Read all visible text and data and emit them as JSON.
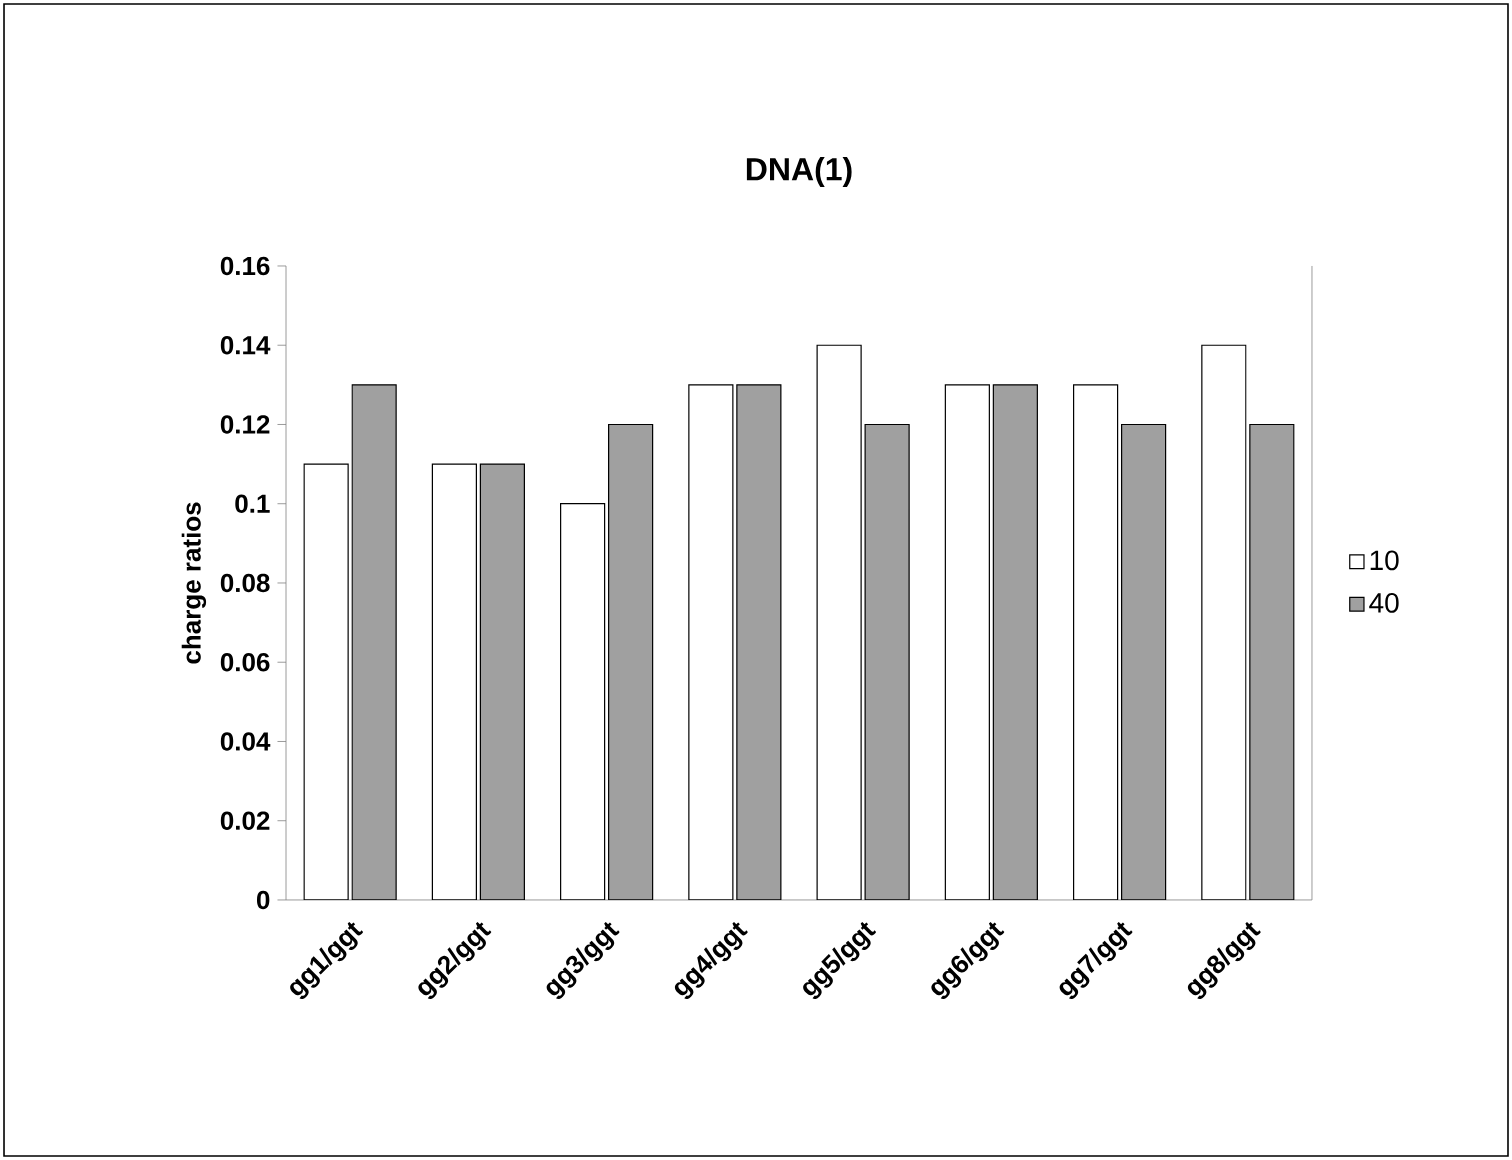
{
  "chart_data": {
    "type": "bar",
    "title": "DNA(1)",
    "ylabel": "charge ratios",
    "categories": [
      "gg1/ggt",
      "gg2/ggt",
      "gg3/ggt",
      "gg4/ggt",
      "gg5/ggt",
      "gg6/ggt",
      "gg7/ggt",
      "gg8/ggt"
    ],
    "series": [
      {
        "name": "10",
        "color": "#ffffff",
        "values": [
          0.11,
          0.11,
          0.1,
          0.13,
          0.14,
          0.13,
          0.13,
          0.14
        ]
      },
      {
        "name": "40",
        "color": "#a0a0a0",
        "values": [
          0.13,
          0.11,
          0.12,
          0.13,
          0.12,
          0.13,
          0.12,
          0.12
        ]
      }
    ],
    "ylim": [
      0,
      0.16
    ],
    "yticks": [
      0,
      0.02,
      0.04,
      0.06,
      0.08,
      0.1,
      0.12,
      0.14,
      0.16
    ],
    "grid": false,
    "legend": "right"
  }
}
